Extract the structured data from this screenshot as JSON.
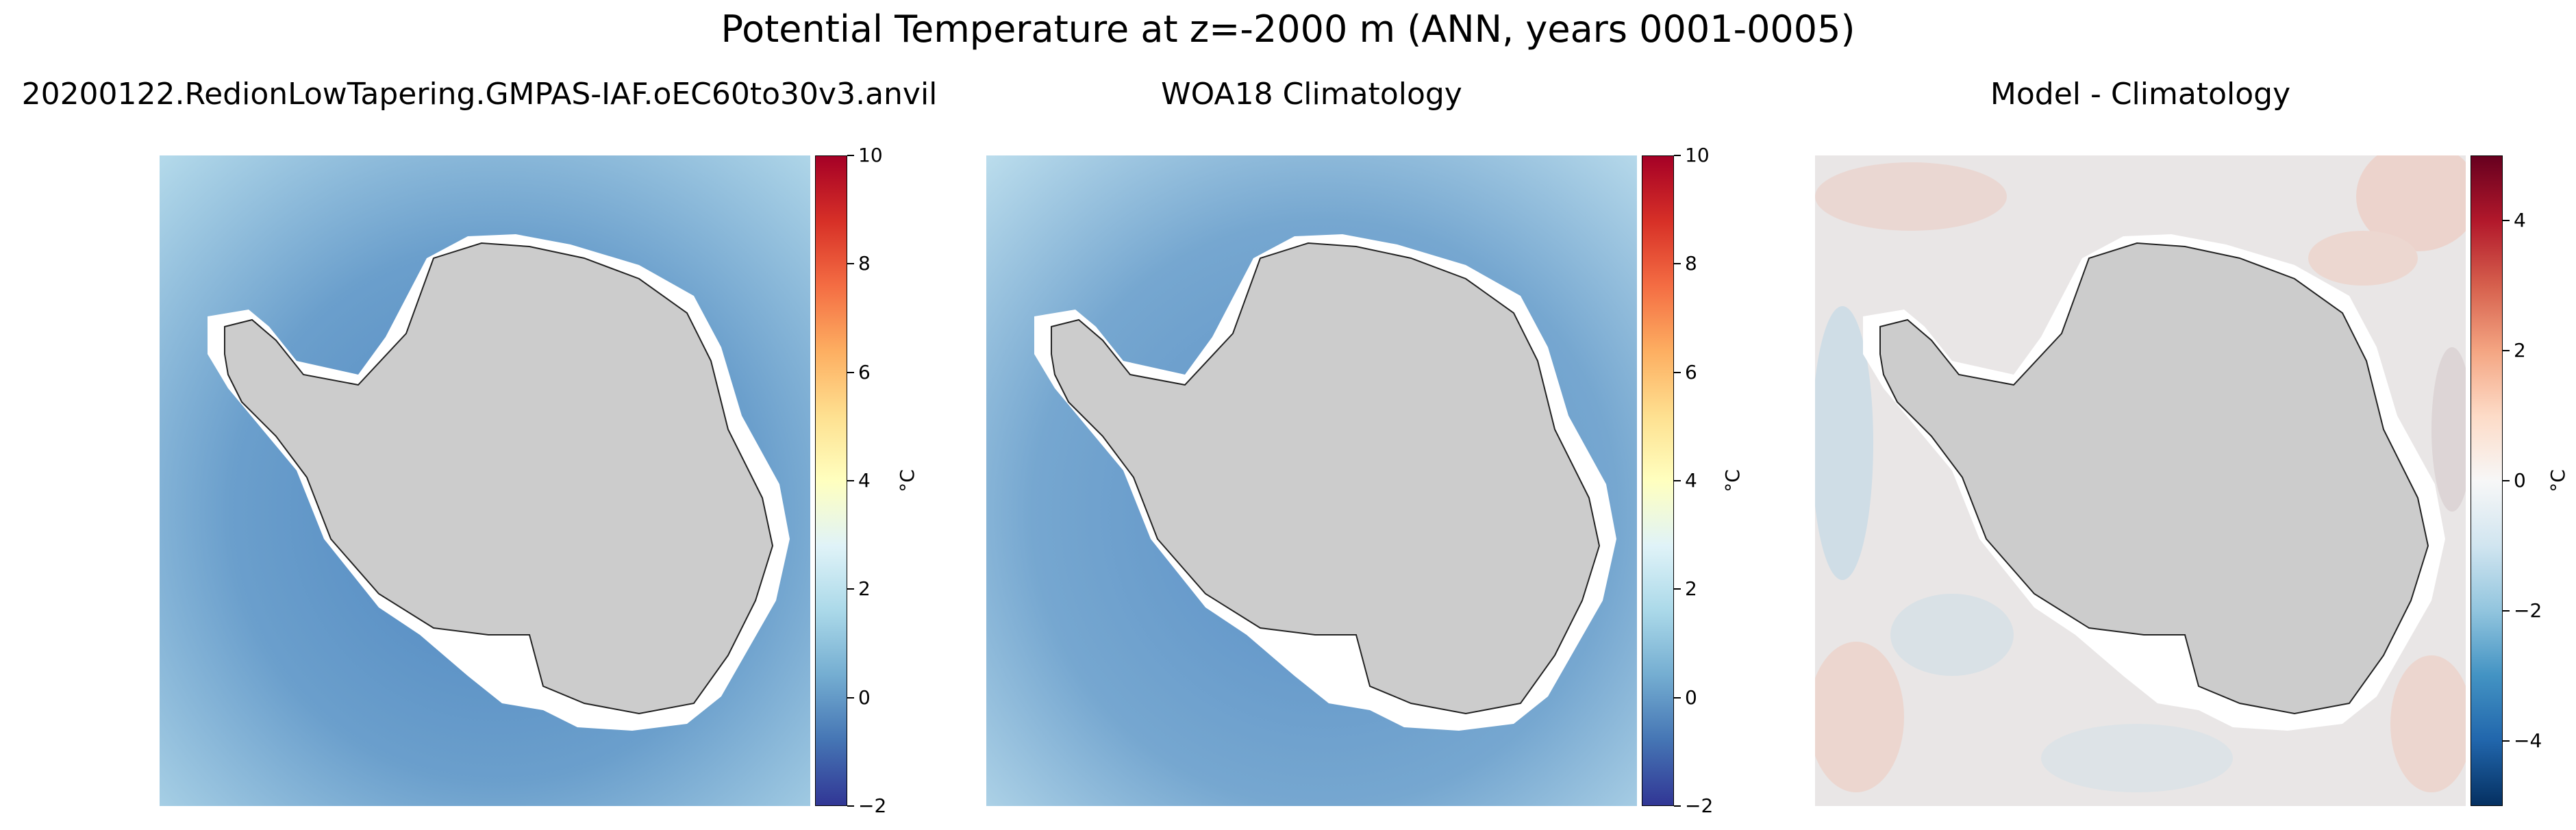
{
  "figure": {
    "title": "Potential Temperature at z=-2000 m (ANN, years 0001-0005)"
  },
  "panels": [
    {
      "title": "20200122.RedionLowTapering.GMPAS-IAF.oEC60to30v3.anvil",
      "variable": "potential temperature (model)",
      "colormap": "RdYlBu_r",
      "colorbar": {
        "label": "°C",
        "ticks": [
          "10",
          "8",
          "6",
          "4",
          "2",
          "0",
          "−2"
        ],
        "range": [
          -2,
          10
        ]
      },
      "colors": {
        "ocean_inner": "#5a8fc4",
        "ocean_outer": "#a9d2e6",
        "land": "#cccccc"
      }
    },
    {
      "title": "WOA18 Climatology",
      "variable": "potential temperature (observations)",
      "colormap": "RdYlBu_r",
      "colorbar": {
        "label": "°C",
        "ticks": [
          "10",
          "8",
          "6",
          "4",
          "2",
          "0",
          "−2"
        ],
        "range": [
          -2,
          10
        ]
      },
      "colors": {
        "ocean_inner": "#5f93c6",
        "ocean_outer": "#b2d6e9",
        "land": "#cccccc"
      }
    },
    {
      "title": "Model - Climatology",
      "variable": "bias",
      "colormap": "RdBu_r",
      "colorbar": {
        "label": "°C",
        "ticks": [
          "4",
          "2",
          "0",
          "−2",
          "−4"
        ],
        "range": [
          -5,
          5
        ]
      },
      "colors": {
        "ocean_inner": "#e8e4e4",
        "ocean_outer": "#ebe5e3",
        "land": "#cccccc"
      }
    }
  ]
}
